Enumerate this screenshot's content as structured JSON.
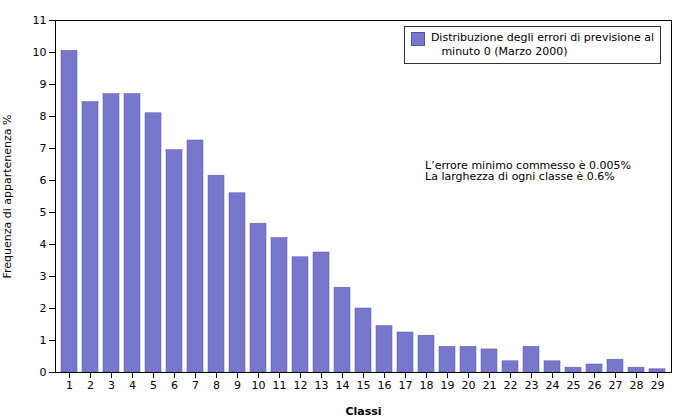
{
  "chart_data": {
    "type": "bar",
    "categories": [
      "1",
      "2",
      "3",
      "4",
      "5",
      "6",
      "7",
      "8",
      "9",
      "10",
      "11",
      "12",
      "13",
      "14",
      "15",
      "16",
      "17",
      "18",
      "19",
      "20",
      "21",
      "22",
      "23",
      "24",
      "25",
      "26",
      "27",
      "28",
      "29"
    ],
    "series": [
      {
        "name": "Distribuzione degli errori di previsione al\n   minuto 0 (Marzo 2000)",
        "color": "#7777cc",
        "values": [
          10.05,
          8.45,
          8.7,
          8.7,
          8.1,
          6.95,
          7.25,
          6.15,
          5.6,
          4.65,
          4.2,
          3.6,
          3.75,
          2.65,
          2.0,
          1.45,
          1.25,
          1.15,
          0.8,
          0.8,
          0.72,
          0.35,
          0.8,
          0.35,
          0.15,
          0.25,
          0.4,
          0.15,
          0.1
        ]
      }
    ],
    "ylabel": "Frequenza di appartenenza %",
    "xlabel": "Classi",
    "ylim": [
      0,
      11
    ],
    "yticks": [
      0,
      1,
      2,
      3,
      4,
      5,
      6,
      7,
      8,
      9,
      10,
      11
    ],
    "grid": false,
    "legend": "upper right",
    "annotations": [
      "L’errore minimo commesso è 0.005%",
      "La larghezza di ogni classe è 0.6%"
    ]
  }
}
